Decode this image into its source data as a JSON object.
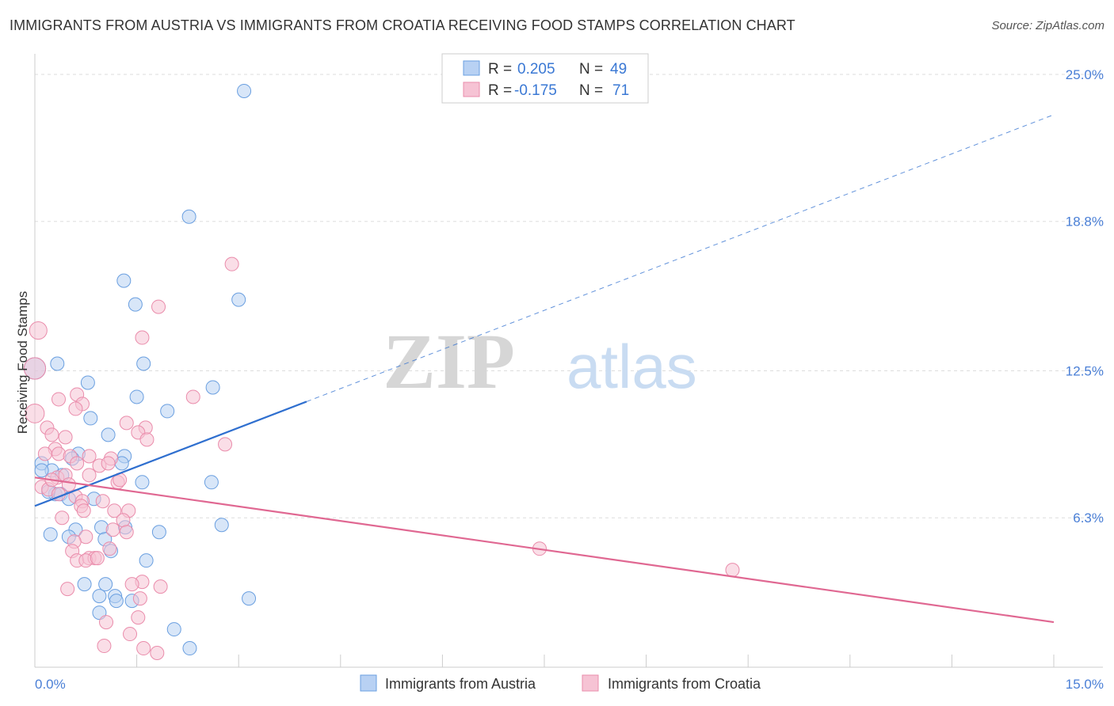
{
  "title": "IMMIGRANTS FROM AUSTRIA VS IMMIGRANTS FROM CROATIA RECEIVING FOOD STAMPS CORRELATION CHART",
  "source": "Source: ZipAtlas.com",
  "watermark": {
    "zip": "ZIP",
    "atlas": "atlas"
  },
  "stats": [
    {
      "r_label": "R =",
      "r_value": "0.205",
      "n_label": "N =",
      "n_value": "49"
    },
    {
      "r_label": "R =",
      "r_value": "-0.175",
      "n_label": "N =",
      "n_value": "71"
    }
  ],
  "colors": {
    "austria": "#6a9fe0",
    "austria_fill": "#b8d1f3",
    "austria_line": "#2f6fcf",
    "croatia": "#ea8cab",
    "croatia_fill": "#f6c3d4",
    "croatia_line": "#e06892",
    "axis_text": "#4a7fd6",
    "grid": "#dddddd"
  },
  "chart_data": {
    "type": "scatter",
    "title": "IMMIGRANTS FROM AUSTRIA VS IMMIGRANTS FROM CROATIA RECEIVING FOOD STAMPS CORRELATION CHART",
    "xlabel": "",
    "ylabel": "Receiving Food Stamps",
    "xlim": [
      0,
      15
    ],
    "ylim": [
      0,
      25.6
    ],
    "x_tick_labels": [
      "0.0%",
      "15.0%"
    ],
    "y_ticks": [
      6.3,
      12.5,
      18.8,
      25.0
    ],
    "y_tick_labels": [
      "6.3%",
      "12.5%",
      "18.8%",
      "25.0%"
    ],
    "legend_position": "bottom",
    "series": [
      {
        "name": "Immigrants from Austria",
        "r": 0.205,
        "n": 49,
        "trend": {
          "x0": 0,
          "y0": 6.8,
          "x1": 4.0,
          "y1": 11.2,
          "dash_x1": 15.0,
          "dash_y1": 23.3
        },
        "points": [
          [
            0.0,
            12.6,
            1.6
          ],
          [
            3.08,
            24.3,
            1
          ],
          [
            2.27,
            19.0,
            1
          ],
          [
            1.31,
            16.3,
            1
          ],
          [
            1.48,
            15.3,
            1
          ],
          [
            3.0,
            15.5,
            1
          ],
          [
            1.6,
            12.8,
            1
          ],
          [
            0.33,
            12.8,
            1
          ],
          [
            0.78,
            12.0,
            1
          ],
          [
            2.62,
            11.8,
            1
          ],
          [
            1.5,
            11.4,
            1
          ],
          [
            1.95,
            10.8,
            1
          ],
          [
            0.82,
            10.5,
            1
          ],
          [
            1.08,
            9.8,
            1
          ],
          [
            0.64,
            9.0,
            1
          ],
          [
            1.32,
            8.9,
            1
          ],
          [
            0.1,
            8.6,
            1
          ],
          [
            0.25,
            8.3,
            1
          ],
          [
            1.28,
            8.6,
            1
          ],
          [
            0.4,
            8.1,
            1
          ],
          [
            0.55,
            8.8,
            1
          ],
          [
            1.58,
            7.8,
            1
          ],
          [
            2.6,
            7.8,
            1
          ],
          [
            0.3,
            7.3,
            1
          ],
          [
            0.2,
            7.4,
            1
          ],
          [
            0.38,
            7.3,
            1
          ],
          [
            0.5,
            7.1,
            1
          ],
          [
            0.87,
            7.1,
            1
          ],
          [
            0.6,
            5.8,
            1
          ],
          [
            0.98,
            5.9,
            1
          ],
          [
            1.33,
            5.9,
            1
          ],
          [
            1.83,
            5.7,
            1
          ],
          [
            2.75,
            6.0,
            1
          ],
          [
            0.23,
            5.6,
            1
          ],
          [
            0.5,
            5.5,
            1
          ],
          [
            1.03,
            5.4,
            1
          ],
          [
            1.12,
            4.9,
            1
          ],
          [
            1.64,
            4.5,
            1
          ],
          [
            0.73,
            3.5,
            1
          ],
          [
            1.04,
            3.5,
            1
          ],
          [
            0.95,
            3.0,
            1
          ],
          [
            1.18,
            3.0,
            1
          ],
          [
            1.2,
            2.8,
            1
          ],
          [
            1.43,
            2.8,
            1
          ],
          [
            3.15,
            2.9,
            1
          ],
          [
            0.95,
            2.3,
            1
          ],
          [
            2.05,
            1.6,
            1
          ],
          [
            2.28,
            0.8,
            1
          ],
          [
            0.1,
            8.3,
            1
          ]
        ]
      },
      {
        "name": "Immigrants from Croatia",
        "r": -0.175,
        "n": 71,
        "trend": {
          "x0": 0,
          "y0": 8.0,
          "x1": 15.0,
          "y1": 1.9
        },
        "points": [
          [
            0.0,
            12.6,
            1.6
          ],
          [
            0.0,
            10.7,
            1.4
          ],
          [
            0.05,
            14.2,
            1.3
          ],
          [
            2.9,
            17.0,
            1
          ],
          [
            1.82,
            15.2,
            1
          ],
          [
            1.58,
            13.9,
            1
          ],
          [
            2.33,
            11.4,
            1
          ],
          [
            0.35,
            11.3,
            1
          ],
          [
            0.62,
            11.5,
            1
          ],
          [
            0.7,
            11.1,
            1
          ],
          [
            0.6,
            10.9,
            1
          ],
          [
            1.35,
            10.3,
            1
          ],
          [
            1.63,
            10.1,
            1
          ],
          [
            1.52,
            9.9,
            1
          ],
          [
            0.18,
            10.1,
            1
          ],
          [
            0.25,
            9.8,
            1
          ],
          [
            0.45,
            9.7,
            1
          ],
          [
            1.65,
            9.6,
            1
          ],
          [
            2.8,
            9.4,
            1
          ],
          [
            0.3,
            9.2,
            1
          ],
          [
            0.35,
            9.0,
            1
          ],
          [
            0.15,
            9.0,
            1
          ],
          [
            0.52,
            8.9,
            1
          ],
          [
            0.8,
            8.9,
            1
          ],
          [
            1.12,
            8.8,
            1
          ],
          [
            0.62,
            8.6,
            1
          ],
          [
            0.95,
            8.5,
            1
          ],
          [
            1.08,
            8.6,
            1
          ],
          [
            0.8,
            8.1,
            1
          ],
          [
            0.33,
            8.0,
            1
          ],
          [
            0.45,
            8.1,
            1
          ],
          [
            1.22,
            7.8,
            1
          ],
          [
            1.25,
            7.9,
            1
          ],
          [
            0.1,
            7.6,
            1
          ],
          [
            0.2,
            7.5,
            1
          ],
          [
            0.35,
            7.3,
            1
          ],
          [
            0.6,
            7.2,
            1
          ],
          [
            0.7,
            7.0,
            1
          ],
          [
            0.68,
            6.8,
            1
          ],
          [
            0.72,
            6.6,
            1
          ],
          [
            1.17,
            6.6,
            1
          ],
          [
            1.38,
            6.6,
            1
          ],
          [
            1.3,
            6.2,
            1
          ],
          [
            1.15,
            5.8,
            1
          ],
          [
            1.35,
            5.7,
            1
          ],
          [
            0.75,
            5.5,
            1
          ],
          [
            0.58,
            5.3,
            1
          ],
          [
            0.55,
            4.9,
            1
          ],
          [
            0.62,
            4.5,
            1
          ],
          [
            0.8,
            4.6,
            1
          ],
          [
            0.88,
            4.6,
            1
          ],
          [
            0.75,
            4.5,
            1
          ],
          [
            0.92,
            4.6,
            1
          ],
          [
            7.43,
            5.0,
            1
          ],
          [
            10.27,
            4.1,
            1
          ],
          [
            1.58,
            3.6,
            1
          ],
          [
            1.85,
            3.4,
            1
          ],
          [
            1.43,
            3.5,
            1
          ],
          [
            0.48,
            3.3,
            1
          ],
          [
            1.55,
            2.9,
            1
          ],
          [
            1.52,
            2.1,
            1
          ],
          [
            1.05,
            1.9,
            1
          ],
          [
            1.4,
            1.4,
            1
          ],
          [
            1.02,
            0.9,
            1
          ],
          [
            1.6,
            0.8,
            1
          ],
          [
            1.8,
            0.6,
            1
          ],
          [
            0.25,
            7.9,
            1
          ],
          [
            0.5,
            7.7,
            1
          ],
          [
            1.0,
            7.0,
            1
          ],
          [
            1.1,
            5.0,
            1
          ],
          [
            0.4,
            6.3,
            1
          ]
        ]
      }
    ]
  }
}
